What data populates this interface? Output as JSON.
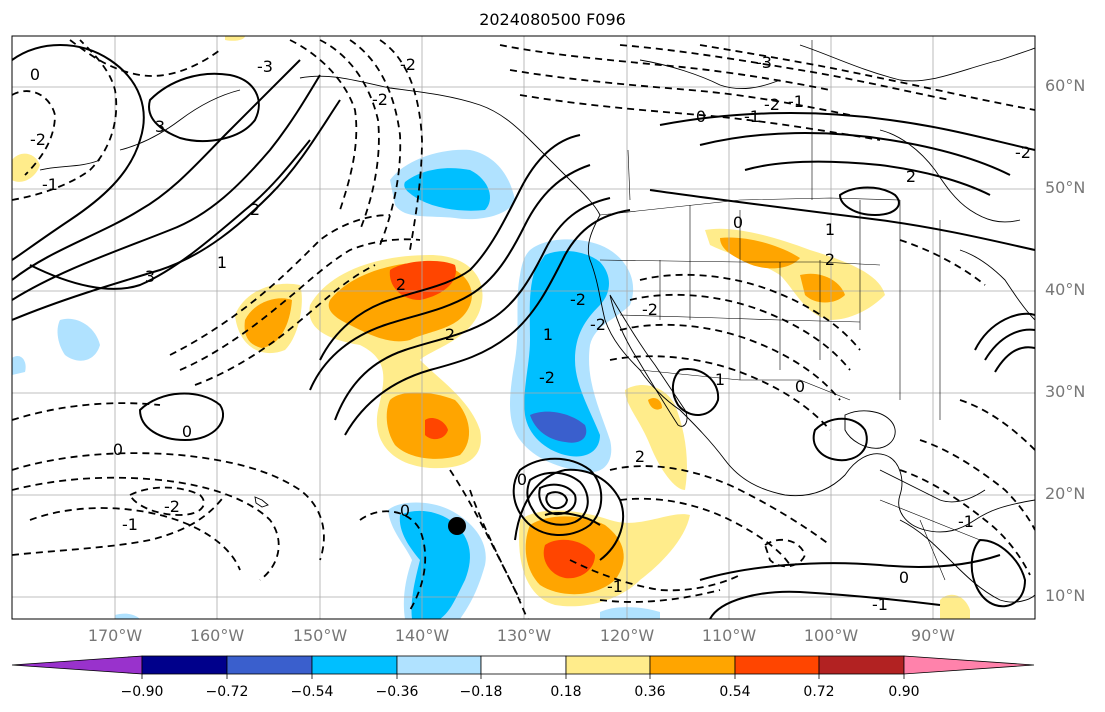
{
  "title": "2024080500 F096",
  "lat_labels": [
    "60°N",
    "50°N",
    "40°N",
    "30°N",
    "20°N",
    "10°N"
  ],
  "lon_labels": [
    "170°W",
    "160°W",
    "150°W",
    "140°W",
    "130°W",
    "120°W",
    "110°W",
    "100°W",
    "90°W"
  ],
  "colorbar": {
    "tick_labels": [
      "−0.90",
      "−0.72",
      "−0.54",
      "−0.36",
      "−0.18",
      "0.18",
      "0.36",
      "0.54",
      "0.72",
      "0.90"
    ],
    "colors": [
      "#9932cc",
      "#00008b",
      "#3a5fcd",
      "#00bfff",
      "#b0e2ff",
      "#ffffff",
      "#ffec8b",
      "#ffa500",
      "#ff4500",
      "#b22222",
      "#ff82ab"
    ]
  },
  "contour_labels": [
    "3",
    "0",
    "-1",
    "-2",
    "-3",
    "2",
    "1",
    "0",
    "-1",
    "-2",
    "2",
    "3",
    "2",
    "-2",
    "1",
    "0",
    "-1",
    "0",
    "0",
    "-2",
    "-1",
    "-2",
    "2",
    "0",
    "-1",
    "-3",
    "-2",
    "-2",
    "2",
    "-2",
    "1",
    "2",
    "-2",
    "0",
    "0",
    "0",
    "-1",
    "1",
    "-1",
    "-2"
  ]
}
